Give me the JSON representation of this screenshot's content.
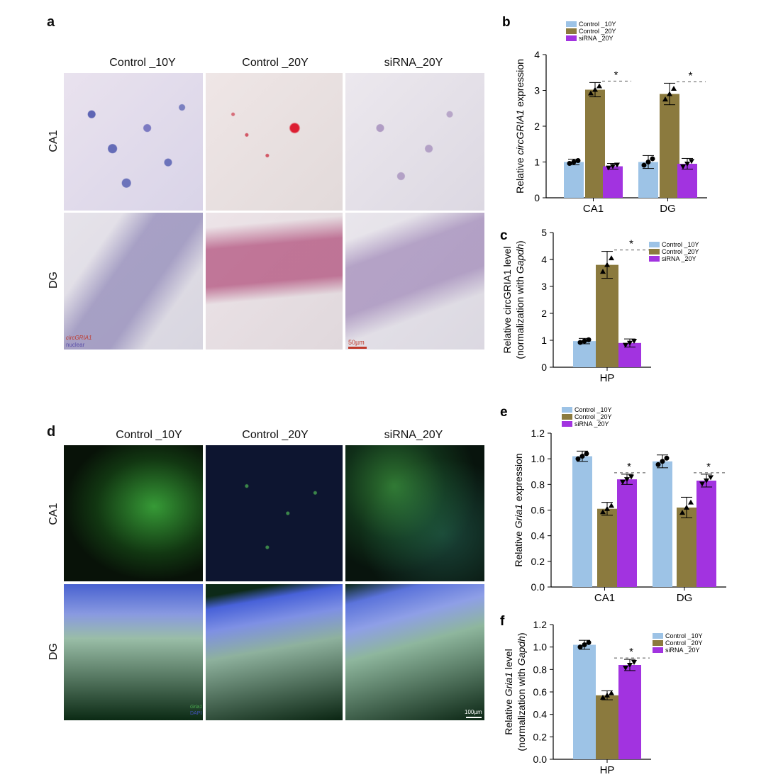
{
  "panels": {
    "a": {
      "letter": "a",
      "columns": [
        "Control _10Y",
        "Control _20Y",
        "siRNA_20Y"
      ],
      "rows": [
        "CA1",
        "DG"
      ],
      "legend_circ": "circGRIA1",
      "legend_nuclear": "nuclear",
      "scale_bar": "50µm"
    },
    "d": {
      "letter": "d",
      "columns": [
        "Control _10Y",
        "Control _20Y",
        "siRNA_20Y"
      ],
      "rows": [
        "CA1",
        "DG"
      ],
      "legend_gria": "Gria1",
      "legend_dapi": "DAPI",
      "scale_bar": "100µm"
    }
  },
  "colors": {
    "control10": "#9dc3e6",
    "control20": "#8b7a3e",
    "sirna20": "#a233e0"
  },
  "chart_data": [
    {
      "id": "b",
      "letter": "b",
      "type": "bar",
      "ylabel_pre": "Relative ",
      "ylabel_ital": "circGRIA1",
      "ylabel_post": " expression",
      "categories": [
        "CA1",
        "DG"
      ],
      "ylim": [
        0,
        4
      ],
      "yticks": [
        0,
        1,
        2,
        3,
        4
      ],
      "legend": [
        "Control _10Y",
        "Control _20Y",
        "siRNA _20Y"
      ],
      "series": [
        {
          "name": "Control _10Y",
          "values": [
            1.0,
            1.0
          ],
          "err": [
            0.08,
            0.18
          ]
        },
        {
          "name": "Control _20Y",
          "values": [
            3.02,
            2.9
          ],
          "err": [
            0.2,
            0.3
          ]
        },
        {
          "name": "siRNA _20Y",
          "values": [
            0.88,
            0.95
          ],
          "err": [
            0.08,
            0.15
          ]
        }
      ],
      "significance": "*"
    },
    {
      "id": "c",
      "letter": "c",
      "type": "bar",
      "ylabel_line1": "Relative circGRIA1 level",
      "ylabel_line2_pre": "(normalization with ",
      "ylabel_line2_ital": "Gapdh",
      "ylabel_line2_post": ")",
      "categories": [
        "HP"
      ],
      "ylim": [
        0,
        5
      ],
      "yticks": [
        0,
        1,
        2,
        3,
        4,
        5
      ],
      "legend": [
        "Control _10Y",
        "Control _20Y",
        "siRNA _20Y"
      ],
      "series": [
        {
          "name": "Control _10Y",
          "values": [
            0.97
          ],
          "err": [
            0.1
          ]
        },
        {
          "name": "Control _20Y",
          "values": [
            3.8
          ],
          "err": [
            0.5
          ]
        },
        {
          "name": "siRNA _20Y",
          "values": [
            0.9
          ],
          "err": [
            0.15
          ]
        }
      ],
      "significance": "*"
    },
    {
      "id": "e",
      "letter": "e",
      "type": "bar",
      "ylabel_pre": "Relative ",
      "ylabel_ital": "Gria1",
      "ylabel_post": " expression",
      "categories": [
        "CA1",
        "DG"
      ],
      "ylim": [
        0,
        1.2
      ],
      "yticks": [
        0.0,
        0.2,
        0.4,
        0.6,
        0.8,
        1.0,
        1.2
      ],
      "legend": [
        "Control _10Y",
        "Control _20Y",
        "siRNA _20Y"
      ],
      "series": [
        {
          "name": "Control _10Y",
          "values": [
            1.02,
            0.98
          ],
          "err": [
            0.04,
            0.05
          ]
        },
        {
          "name": "Control _20Y",
          "values": [
            0.61,
            0.62
          ],
          "err": [
            0.05,
            0.08
          ]
        },
        {
          "name": "siRNA _20Y",
          "values": [
            0.84,
            0.83
          ],
          "err": [
            0.04,
            0.05
          ]
        }
      ],
      "significance": "*"
    },
    {
      "id": "f",
      "letter": "f",
      "type": "bar",
      "ylabel_line1_pre": "Relative ",
      "ylabel_line1_ital": "Gria1",
      "ylabel_line1_post": " level",
      "ylabel_line2_pre": "(normalization with ",
      "ylabel_line2_ital": "Gapdh",
      "ylabel_line2_post": ")",
      "categories": [
        "HP"
      ],
      "ylim": [
        0,
        1.2
      ],
      "yticks": [
        0.0,
        0.2,
        0.4,
        0.6,
        0.8,
        1.0,
        1.2
      ],
      "legend": [
        "Control _10Y",
        "Control _20Y",
        "siRNA _20Y"
      ],
      "series": [
        {
          "name": "Control _10Y",
          "values": [
            1.02
          ],
          "err": [
            0.04
          ]
        },
        {
          "name": "Control _20Y",
          "values": [
            0.57
          ],
          "err": [
            0.04
          ]
        },
        {
          "name": "siRNA _20Y",
          "values": [
            0.84
          ],
          "err": [
            0.05
          ]
        }
      ],
      "significance": "*"
    }
  ]
}
